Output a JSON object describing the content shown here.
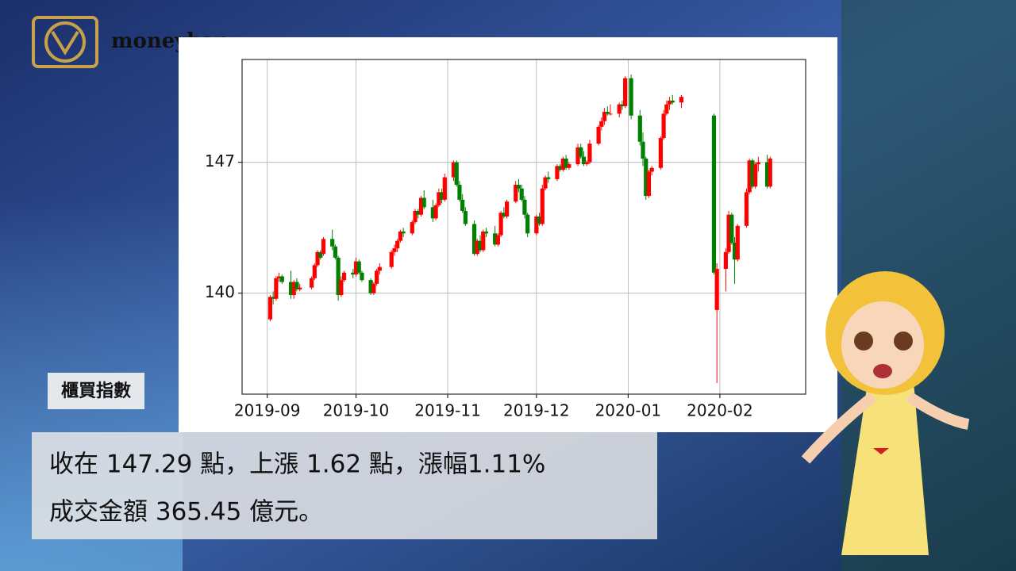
{
  "logo": {
    "text": "moneybar"
  },
  "label": "櫃買指數",
  "caption": [
    "收在 147.29 點，上漲 1.62 點，漲幅1.11%",
    "成交金額 365.45 億元。"
  ],
  "chart_data": {
    "type": "candlestick",
    "up_color": "#ff0000",
    "down_color": "#008000",
    "grid": true,
    "xlim": [
      -8.5,
      182
    ],
    "ylim": [
      134.6,
      152.5
    ],
    "xticks": [
      {
        "value": 0,
        "label": "2019-09"
      },
      {
        "value": 30,
        "label": "2019-10"
      },
      {
        "value": 61,
        "label": "2019-11"
      },
      {
        "value": 91,
        "label": "2019-12"
      },
      {
        "value": 122,
        "label": "2020-01"
      },
      {
        "value": 153,
        "label": "2020-02"
      }
    ],
    "yticks": [
      140,
      147
    ],
    "x": [
      1,
      2,
      3,
      4,
      5,
      8,
      9,
      10,
      11,
      15,
      16,
      17,
      18,
      19,
      22,
      23,
      24,
      25,
      26,
      29,
      30,
      31,
      32,
      35,
      36,
      37,
      38,
      42,
      43,
      44,
      45,
      46,
      49,
      50,
      51,
      52,
      53,
      56,
      57,
      58,
      59,
      60,
      63,
      64,
      65,
      66,
      67,
      70,
      71,
      72,
      73,
      74,
      77,
      78,
      79,
      80,
      81,
      84,
      85,
      86,
      87,
      88,
      91,
      92,
      93,
      94,
      95,
      98,
      99,
      100,
      101,
      102,
      105,
      106,
      107,
      108,
      109,
      112,
      113,
      114,
      115,
      116,
      119,
      120,
      121,
      123,
      126,
      127,
      128,
      129,
      130,
      133,
      134,
      135,
      136,
      137,
      140,
      151,
      152,
      155,
      156,
      157,
      158,
      159,
      162,
      163,
      164,
      165,
      166,
      169,
      170
    ],
    "open": [
      138.6,
      139.8,
      139.7,
      140.8,
      140.9,
      140.6,
      139.9,
      140.6,
      140.2,
      140.3,
      140.8,
      141.5,
      142.2,
      142.1,
      142.9,
      142.5,
      141.9,
      139.9,
      140.7,
      141.1,
      141.0,
      141.7,
      141.1,
      140.7,
      140.0,
      140.5,
      141.2,
      141.4,
      142.2,
      142.4,
      142.8,
      143.3,
      143.2,
      143.8,
      144.4,
      144.2,
      145.1,
      144.6,
      144.0,
      144.7,
      145.4,
      145.0,
      146.2,
      147.0,
      145.8,
      145.0,
      144.4,
      143.7,
      142.1,
      142.8,
      142.3,
      143.3,
      143.2,
      142.6,
      143.1,
      144.3,
      144.1,
      144.9,
      145.8,
      145.6,
      145.0,
      144.2,
      143.2,
      144.1,
      143.7,
      145.6,
      146.2,
      146.1,
      146.8,
      146.6,
      147.2,
      146.7,
      146.9,
      147.8,
      147.3,
      146.9,
      147.0,
      148.0,
      148.9,
      149.2,
      149.7,
      149.6,
      149.6,
      150.1,
      150.0,
      151.5,
      149.5,
      148.1,
      147.2,
      145.2,
      146.5,
      146.7,
      148.3,
      149.6,
      150.1,
      150.3,
      150.2,
      149.5,
      139.1,
      141.3,
      142.2,
      144.2,
      142.7,
      141.8,
      143.6,
      145.4,
      147.1,
      145.7,
      146.9,
      147.0,
      145.7
    ],
    "high": [
      139.9,
      140.1,
      140.9,
      141.1,
      141.0,
      141.2,
      140.7,
      140.8,
      140.5,
      140.9,
      141.6,
      142.3,
      142.3,
      143.0,
      143.4,
      142.6,
      142.0,
      140.9,
      141.2,
      141.3,
      141.9,
      141.8,
      141.2,
      140.8,
      140.6,
      141.3,
      141.6,
      142.3,
      142.6,
      142.9,
      143.4,
      143.5,
      143.9,
      144.5,
      144.5,
      145.2,
      145.5,
      145.0,
      144.8,
      145.6,
      145.6,
      146.4,
      147.1,
      147.1,
      146.0,
      145.3,
      144.6,
      143.9,
      142.9,
      143.1,
      143.4,
      143.5,
      143.6,
      143.2,
      144.4,
      144.6,
      145.0,
      146.0,
      146.1,
      145.8,
      145.2,
      144.3,
      144.2,
      144.3,
      145.8,
      146.3,
      146.5,
      146.9,
      146.9,
      147.3,
      147.4,
      147.0,
      148.0,
      148.0,
      147.6,
      147.1,
      148.2,
      149.0,
      149.4,
      149.9,
      150.0,
      150.1,
      150.2,
      150.3,
      151.6,
      151.7,
      149.8,
      148.6,
      147.3,
      146.6,
      146.8,
      148.4,
      149.8,
      150.3,
      150.5,
      150.6,
      150.6,
      149.6,
      141.6,
      142.4,
      144.4,
      144.3,
      143.0,
      143.7,
      145.6,
      147.2,
      147.2,
      147.0,
      147.3,
      147.4,
      147.3
    ],
    "low": [
      138.5,
      139.4,
      139.6,
      140.6,
      140.5,
      139.7,
      139.7,
      140.1,
      140.1,
      140.2,
      140.7,
      141.4,
      141.8,
      142.0,
      142.3,
      141.8,
      139.6,
      139.8,
      140.6,
      140.8,
      140.9,
      141.0,
      140.6,
      139.9,
      139.9,
      140.4,
      141.0,
      141.3,
      142.0,
      142.2,
      142.7,
      143.0,
      143.1,
      143.7,
      144.0,
      144.1,
      144.5,
      143.8,
      143.9,
      144.6,
      144.8,
      144.9,
      146.0,
      145.7,
      144.9,
      144.3,
      143.6,
      142.0,
      142.0,
      142.2,
      142.2,
      143.0,
      142.5,
      142.5,
      143.0,
      144.0,
      144.0,
      144.8,
      145.4,
      144.9,
      144.0,
      143.0,
      143.1,
      143.6,
      143.6,
      145.5,
      145.9,
      146.0,
      146.5,
      146.5,
      146.6,
      146.6,
      146.8,
      147.2,
      146.8,
      146.8,
      146.9,
      147.9,
      148.7,
      149.0,
      149.5,
      149.5,
      149.4,
      149.8,
      149.9,
      149.3,
      147.9,
      146.8,
      145.0,
      145.1,
      146.3,
      146.6,
      148.2,
      149.5,
      149.8,
      150.1,
      149.9,
      141.0,
      135.2,
      140.1,
      142.1,
      142.6,
      140.5,
      141.7,
      143.5,
      145.3,
      145.6,
      145.6,
      146.5,
      145.6,
      145.6
    ],
    "close": [
      139.8,
      139.7,
      140.8,
      140.9,
      140.6,
      139.9,
      140.6,
      140.2,
      140.3,
      140.8,
      141.5,
      142.2,
      141.9,
      142.9,
      142.5,
      141.9,
      139.9,
      140.7,
      141.1,
      141.0,
      141.7,
      141.1,
      140.7,
      140.0,
      140.5,
      141.2,
      141.4,
      142.2,
      142.4,
      142.8,
      143.3,
      143.2,
      143.8,
      144.4,
      144.2,
      145.1,
      144.6,
      144.0,
      144.7,
      145.4,
      145.0,
      146.2,
      147.0,
      145.8,
      145.0,
      144.4,
      143.7,
      142.1,
      142.8,
      142.3,
      143.3,
      143.2,
      142.6,
      143.1,
      144.3,
      144.1,
      144.9,
      145.8,
      145.6,
      145.0,
      144.2,
      143.2,
      144.1,
      143.7,
      145.6,
      146.2,
      146.1,
      146.8,
      146.6,
      147.2,
      146.7,
      146.9,
      147.8,
      147.3,
      146.9,
      147.0,
      148.0,
      148.9,
      149.2,
      149.7,
      149.6,
      149.6,
      150.1,
      150.0,
      151.5,
      149.5,
      148.1,
      147.2,
      145.2,
      146.5,
      146.7,
      148.3,
      149.6,
      150.1,
      150.3,
      150.2,
      150.5,
      141.1,
      141.3,
      142.2,
      144.2,
      142.7,
      141.8,
      143.6,
      145.4,
      147.1,
      145.7,
      146.9,
      147.0,
      145.7,
      147.2
    ]
  }
}
